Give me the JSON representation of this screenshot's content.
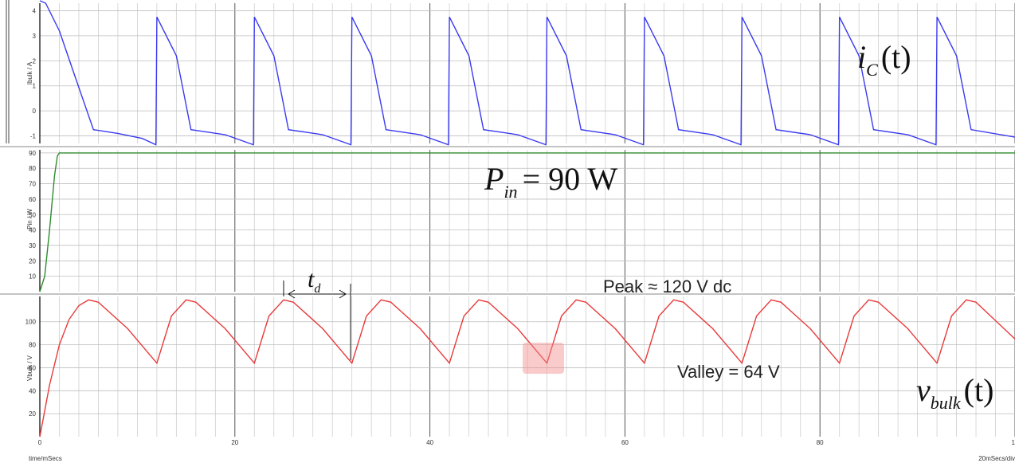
{
  "chart_data": [
    {
      "type": "line",
      "ylabel": "Ibulk / A",
      "xlim": [
        0,
        100
      ],
      "ylim": [
        -1.3,
        4.3
      ],
      "yticks": [
        "-1",
        "0",
        "1",
        "2",
        "3",
        "4"
      ],
      "series": [
        {
          "name": "i_C(t)",
          "color": "#3a3af0",
          "x": [
            0,
            0.6,
            2,
            3.5,
            5.5,
            8,
            10.5,
            11.9,
            12.0,
            14,
            15.5,
            19,
            21.9,
            22.0,
            24,
            25.5,
            29,
            31.9,
            32.0,
            34,
            35.5,
            39,
            41.9,
            42.0,
            44,
            45.5,
            49,
            51.9,
            52.0,
            54,
            55.5,
            59,
            61.9,
            62.0,
            64,
            65.5,
            69,
            71.9,
            72.0,
            74,
            75.5,
            79,
            81.9,
            82.0,
            84,
            85.5,
            89,
            91.9,
            92.0,
            94,
            95.5,
            100
          ],
          "y": [
            4.4,
            4.3,
            3.2,
            1.5,
            -0.75,
            -0.9,
            -1.1,
            -1.35,
            3.75,
            2.2,
            -0.75,
            -0.95,
            -1.35,
            3.75,
            2.2,
            -0.75,
            -0.95,
            -1.35,
            3.75,
            2.2,
            -0.75,
            -0.95,
            -1.35,
            3.75,
            2.2,
            -0.75,
            -0.95,
            -1.35,
            3.75,
            2.2,
            -0.75,
            -0.95,
            -1.35,
            3.75,
            2.2,
            -0.75,
            -0.95,
            -1.35,
            3.75,
            2.2,
            -0.75,
            -0.95,
            -1.35,
            3.75,
            2.2,
            -0.75,
            -0.95,
            -1.35,
            3.75,
            2.2,
            -0.75,
            -1.05
          ]
        }
      ]
    },
    {
      "type": "line",
      "ylabel": "Pin / W",
      "xlim": [
        0,
        100
      ],
      "ylim": [
        0,
        92
      ],
      "yticks": [
        "10",
        "20",
        "30",
        "40",
        "50",
        "60",
        "70",
        "80",
        "90"
      ],
      "series": [
        {
          "name": "P_in",
          "color": "#2e8b2e",
          "x": [
            0,
            0.5,
            1.0,
            1.5,
            1.8,
            2.0,
            100
          ],
          "y": [
            0,
            10,
            40,
            75,
            88,
            90,
            90
          ]
        }
      ]
    },
    {
      "type": "line",
      "ylabel": "Vbulk / V",
      "xlabel": "time/mSecs",
      "xlabel_right": "20mSecs/div",
      "xlim": [
        0,
        100
      ],
      "ylim": [
        0,
        122
      ],
      "xticks": [
        "0",
        "20",
        "40",
        "60",
        "80",
        "1"
      ],
      "yticks": [
        "20",
        "40",
        "60",
        "80",
        "100"
      ],
      "series": [
        {
          "name": "v_bulk(t)",
          "color": "#e83b3b",
          "x": [
            0,
            1,
            2,
            3,
            4,
            5,
            6,
            9,
            12,
            13.5,
            15,
            16,
            19,
            22,
            23.5,
            25,
            26,
            29,
            32,
            33.5,
            35,
            36,
            39,
            42,
            43.5,
            45,
            46,
            49,
            52,
            53.5,
            55,
            56,
            59,
            62,
            63.5,
            65,
            66,
            69,
            72,
            73.5,
            75,
            76,
            79,
            82,
            83.5,
            85,
            86,
            89,
            92,
            93.5,
            95,
            96,
            100
          ],
          "y": [
            0,
            45,
            80,
            102,
            114,
            119,
            117,
            94,
            64,
            105,
            119,
            117,
            94,
            64,
            105,
            119,
            117,
            94,
            64,
            105,
            119,
            117,
            94,
            64,
            105,
            119,
            117,
            94,
            64,
            105,
            119,
            117,
            94,
            64,
            105,
            119,
            117,
            94,
            64,
            105,
            119,
            117,
            94,
            64,
            105,
            119,
            117,
            94,
            64,
            105,
            119,
            117,
            85
          ]
        }
      ]
    }
  ],
  "annotations": {
    "ic_label": {
      "sym": "i",
      "sub": "C",
      "rest": "(t)"
    },
    "pin_label": {
      "sym": "P",
      "sub": "in",
      "rest": "= 90 W"
    },
    "td_label": {
      "sym": "t",
      "sub": "d"
    },
    "peak_label": "Peak ≈ 120 V dc",
    "valley_label": "Valley = 64 V",
    "vbulk_label": {
      "sym": "v",
      "sub": "bulk",
      "rest": "(t)"
    }
  }
}
